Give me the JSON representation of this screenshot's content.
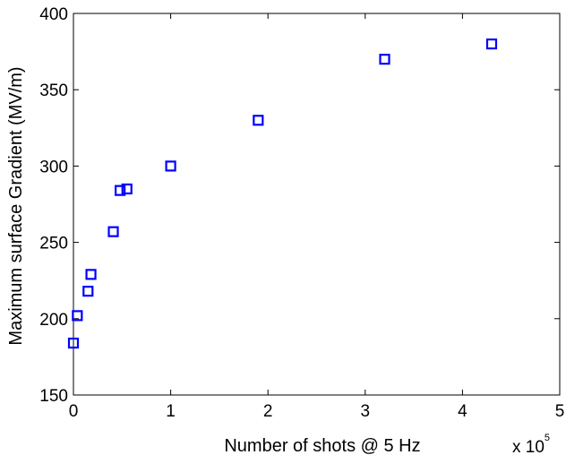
{
  "chart_data": {
    "type": "scatter",
    "title": "",
    "xlabel": "Number of shots @ 5 Hz",
    "ylabel": "Maximum surface Gradient (MV/m)",
    "x_multiplier_base": "x 10",
    "x_multiplier_exponent": "5",
    "xlim": [
      0,
      5
    ],
    "ylim": [
      150,
      400
    ],
    "xticks": [
      0,
      1,
      2,
      3,
      4,
      5
    ],
    "yticks": [
      150,
      200,
      250,
      300,
      350,
      400
    ],
    "grid": false,
    "legend": "none",
    "marker": "square",
    "marker_color": "#0000ff",
    "series": [
      {
        "x": [
          0.0,
          0.04,
          0.15,
          0.18,
          0.41,
          0.48,
          0.55,
          1.0,
          1.9,
          3.2,
          4.3
        ],
        "y": [
          184,
          202,
          218,
          229,
          257,
          284,
          285,
          300,
          330,
          370,
          380
        ]
      }
    ]
  }
}
